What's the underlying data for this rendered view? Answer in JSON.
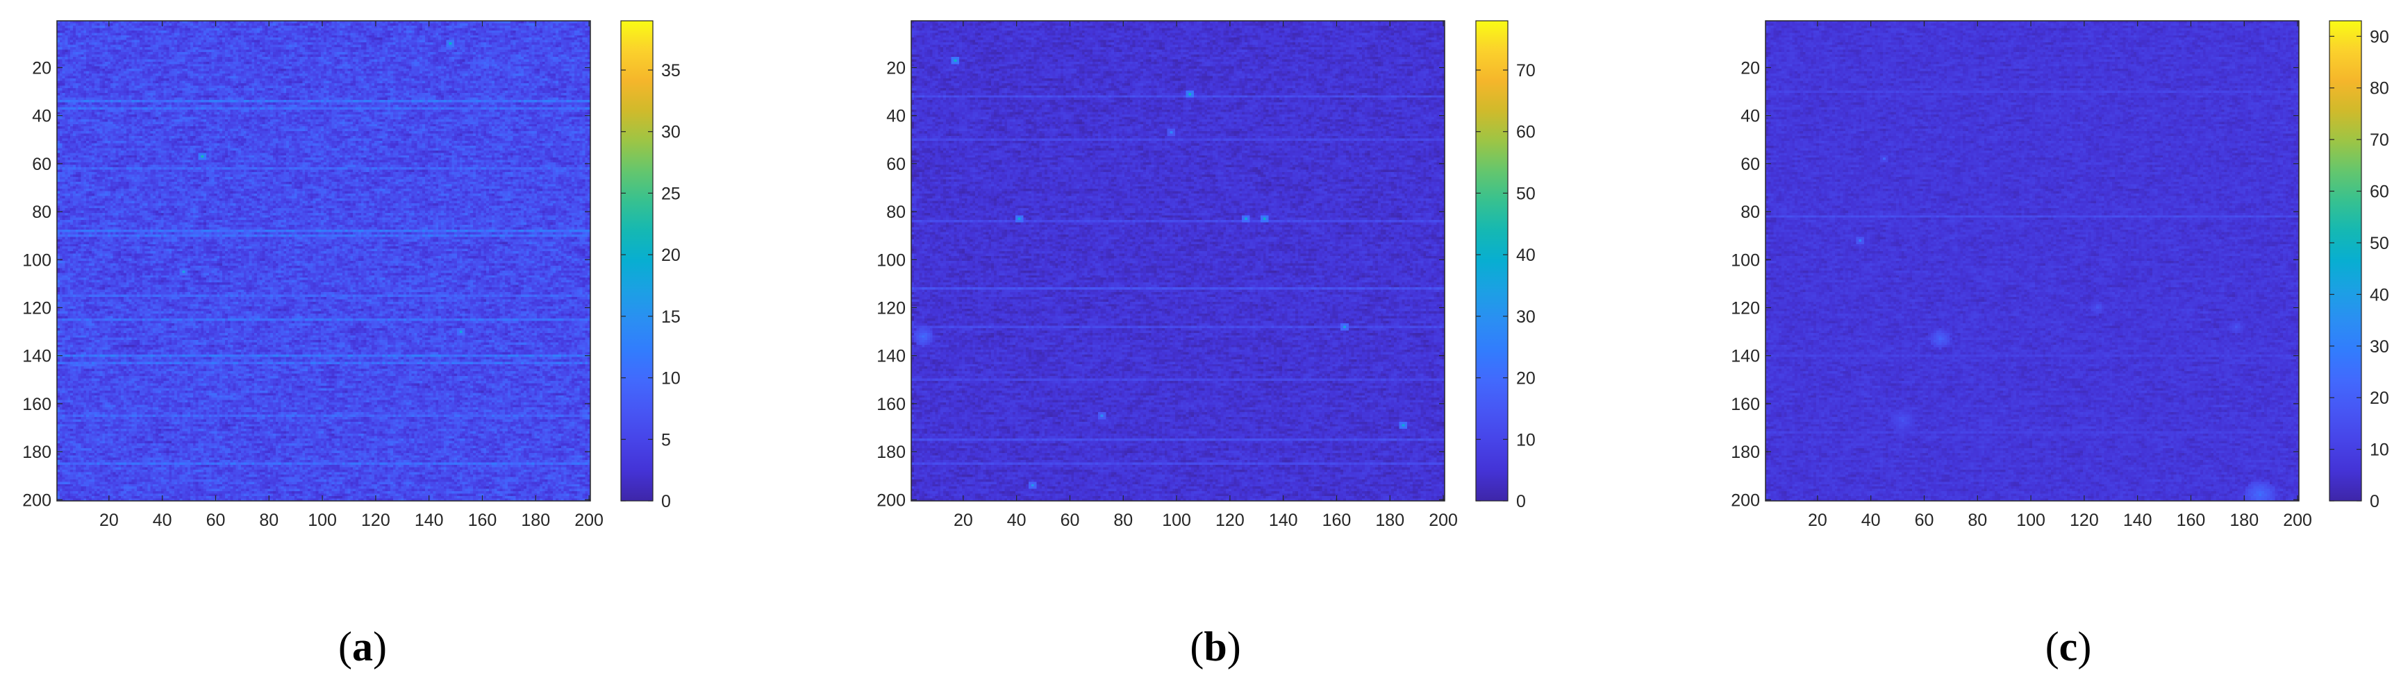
{
  "colors": {
    "colormap": [
      "#3e26a8",
      "#4433d6",
      "#4744e8",
      "#4756f4",
      "#4269fd",
      "#327cfd",
      "#2b8ef3",
      "#1ca0e4",
      "#08aed1",
      "#15b8b3",
      "#37c190",
      "#65c66d",
      "#9dc545",
      "#d0ba2b",
      "#f5b62b",
      "#fbd12c",
      "#f9fb15"
    ],
    "axis": "#262626"
  },
  "chart_data": [
    {
      "type": "heatmap",
      "caption_letter": "a",
      "title": "",
      "xlabel": "",
      "ylabel": "",
      "x_range": [
        1,
        200
      ],
      "y_range": [
        1,
        200
      ],
      "y_direction": "reversed",
      "x_ticks": [
        "20",
        "40",
        "60",
        "80",
        "100",
        "120",
        "140",
        "160",
        "180",
        "200"
      ],
      "y_ticks": [
        "20",
        "40",
        "60",
        "80",
        "100",
        "120",
        "140",
        "160",
        "180",
        "200"
      ],
      "clim": [
        0,
        39
      ],
      "colorbar_ticks": [
        "0",
        "5",
        "10",
        "15",
        "20",
        "25",
        "30",
        "35"
      ],
      "background_mean": 6,
      "background_spread": 5,
      "streak_rows": [
        {
          "row": 34,
          "value": 11
        },
        {
          "row": 37,
          "value": 10
        },
        {
          "row": 62,
          "value": 9
        },
        {
          "row": 88,
          "value": 11
        },
        {
          "row": 90,
          "value": 10
        },
        {
          "row": 115,
          "value": 9
        },
        {
          "row": 125,
          "value": 10
        },
        {
          "row": 140,
          "value": 11
        },
        {
          "row": 143,
          "value": 10
        },
        {
          "row": 165,
          "value": 9
        },
        {
          "row": 185,
          "value": 10
        }
      ],
      "hotspots": [
        {
          "x": 55,
          "y": 57,
          "value": 22
        },
        {
          "x": 148,
          "y": 10,
          "value": 20
        },
        {
          "x": 152,
          "y": 130,
          "value": 18
        },
        {
          "x": 48,
          "y": 105,
          "value": 17
        }
      ],
      "blobs": []
    },
    {
      "type": "heatmap",
      "caption_letter": "b",
      "title": "",
      "xlabel": "",
      "ylabel": "",
      "x_range": [
        1,
        200
      ],
      "y_range": [
        1,
        200
      ],
      "y_direction": "reversed",
      "x_ticks": [
        "20",
        "40",
        "60",
        "80",
        "100",
        "120",
        "140",
        "160",
        "180",
        "200"
      ],
      "y_ticks": [
        "20",
        "40",
        "60",
        "80",
        "100",
        "120",
        "140",
        "160",
        "180",
        "200"
      ],
      "clim": [
        0,
        78
      ],
      "colorbar_ticks": [
        "0",
        "10",
        "20",
        "30",
        "40",
        "50",
        "60",
        "70"
      ],
      "background_mean": 5,
      "background_spread": 5,
      "streak_rows": [
        {
          "row": 32,
          "value": 12
        },
        {
          "row": 50,
          "value": 10
        },
        {
          "row": 84,
          "value": 11
        },
        {
          "row": 112,
          "value": 13
        },
        {
          "row": 128,
          "value": 11
        },
        {
          "row": 150,
          "value": 10
        },
        {
          "row": 175,
          "value": 12
        },
        {
          "row": 185,
          "value": 11
        }
      ],
      "hotspots": [
        {
          "x": 17,
          "y": 17,
          "value": 40
        },
        {
          "x": 105,
          "y": 31,
          "value": 42
        },
        {
          "x": 41,
          "y": 83,
          "value": 38
        },
        {
          "x": 126,
          "y": 83,
          "value": 36
        },
        {
          "x": 133,
          "y": 83,
          "value": 40
        },
        {
          "x": 163,
          "y": 128,
          "value": 34
        },
        {
          "x": 185,
          "y": 169,
          "value": 38
        },
        {
          "x": 46,
          "y": 194,
          "value": 32
        },
        {
          "x": 72,
          "y": 165,
          "value": 28
        },
        {
          "x": 98,
          "y": 47,
          "value": 26
        }
      ],
      "blobs": [
        {
          "x": 5,
          "y": 132,
          "r": 4,
          "value": 20
        }
      ]
    },
    {
      "type": "heatmap",
      "caption_letter": "c",
      "title": "",
      "xlabel": "",
      "ylabel": "",
      "x_range": [
        1,
        200
      ],
      "y_range": [
        1,
        200
      ],
      "y_direction": "reversed",
      "x_ticks": [
        "20",
        "40",
        "60",
        "80",
        "100",
        "120",
        "140",
        "160",
        "180",
        "200"
      ],
      "y_ticks": [
        "20",
        "40",
        "60",
        "80",
        "100",
        "120",
        "140",
        "160",
        "180",
        "200"
      ],
      "clim": [
        0,
        93
      ],
      "colorbar_ticks": [
        "0",
        "10",
        "20",
        "30",
        "40",
        "50",
        "60",
        "70",
        "80",
        "90"
      ],
      "background_mean": 7,
      "background_spread": 5,
      "streak_rows": [
        {
          "row": 30,
          "value": 11
        },
        {
          "row": 82,
          "value": 14
        },
        {
          "row": 140,
          "value": 10
        },
        {
          "row": 172,
          "value": 10
        }
      ],
      "hotspots": [
        {
          "x": 36,
          "y": 92,
          "value": 30
        },
        {
          "x": 45,
          "y": 58,
          "value": 22
        }
      ],
      "blobs": [
        {
          "x": 66,
          "y": 133,
          "r": 4,
          "value": 22
        },
        {
          "x": 52,
          "y": 167,
          "r": 5,
          "value": 16
        },
        {
          "x": 186,
          "y": 198,
          "r": 6,
          "value": 24
        },
        {
          "x": 177,
          "y": 128,
          "r": 3,
          "value": 16
        },
        {
          "x": 125,
          "y": 120,
          "r": 3,
          "value": 16
        }
      ]
    }
  ]
}
